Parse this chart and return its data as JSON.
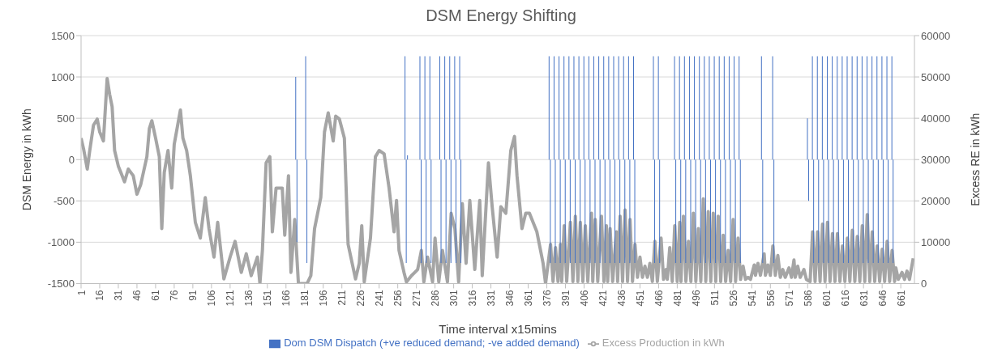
{
  "chart_data": {
    "type": "bar",
    "title": "DSM Energy Shifting",
    "xlabel": "Time interval x15mins",
    "ylabel": "DSM Energy in kWh",
    "y2label": "Excess RE in kWh",
    "xlim": [
      1,
      672
    ],
    "xticks": [
      1,
      16,
      31,
      46,
      61,
      76,
      91,
      106,
      121,
      136,
      151,
      166,
      181,
      196,
      211,
      226,
      241,
      256,
      271,
      286,
      301,
      316,
      331,
      346,
      361,
      376,
      391,
      406,
      421,
      436,
      451,
      466,
      481,
      496,
      511,
      526,
      541,
      556,
      571,
      586,
      601,
      616,
      631,
      646,
      661
    ],
    "ylim": [
      -1500,
      1500
    ],
    "yticks": [
      -1500,
      -1000,
      -500,
      0,
      500,
      1000,
      1500
    ],
    "y2lim": [
      0,
      60000
    ],
    "y2ticks": [
      0,
      10000,
      20000,
      30000,
      40000,
      50000,
      60000
    ],
    "grid": "y",
    "legend": "bottom",
    "series": [
      {
        "name": "Dom DSM Dispatch (+ve reduced demand; -ve added demand)",
        "type": "bar",
        "color": "#4472c4",
        "x": [
          174,
          175,
          182,
          183,
          262,
          263,
          264,
          274,
          275,
          278,
          279,
          282,
          283,
          290,
          291,
          294,
          295,
          298,
          299,
          302,
          303,
          306,
          307,
          378,
          379,
          382,
          383,
          386,
          387,
          390,
          391,
          394,
          395,
          398,
          399,
          402,
          403,
          406,
          407,
          410,
          411,
          414,
          415,
          418,
          419,
          422,
          423,
          426,
          427,
          430,
          431,
          434,
          435,
          438,
          439,
          442,
          443,
          446,
          447,
          462,
          463,
          466,
          467,
          479,
          480,
          483,
          484,
          487,
          488,
          491,
          492,
          495,
          496,
          499,
          500,
          503,
          504,
          507,
          508,
          511,
          512,
          515,
          516,
          519,
          520,
          523,
          524,
          527,
          528,
          531,
          532,
          549,
          550,
          558,
          559,
          586,
          587,
          590,
          591,
          594,
          595,
          598,
          599,
          602,
          603,
          606,
          607,
          610,
          611,
          614,
          615,
          618,
          619,
          622,
          623,
          626,
          627,
          630,
          631,
          634,
          635,
          638,
          639,
          642,
          643,
          646,
          647,
          650,
          651,
          654,
          655
        ],
        "values": [
          1000,
          -1000,
          1250,
          -1250,
          1250,
          -1250,
          50,
          1250,
          -1250,
          1250,
          -1250,
          1250,
          -1250,
          1250,
          -1250,
          1250,
          -1250,
          1250,
          -1250,
          1250,
          -1250,
          1250,
          -1250,
          1250,
          -1250,
          1250,
          -1250,
          1250,
          -1250,
          1250,
          -1250,
          1250,
          -1250,
          1250,
          -1250,
          1250,
          -1250,
          1250,
          -1250,
          1250,
          -1250,
          1250,
          -1250,
          1250,
          -1250,
          1250,
          -1250,
          1250,
          -1250,
          1250,
          -1250,
          1250,
          -1250,
          1250,
          -1250,
          1250,
          -1250,
          1250,
          -1250,
          1250,
          -1250,
          1250,
          -1250,
          1250,
          -1250,
          1250,
          -1250,
          1250,
          -1250,
          1250,
          -1250,
          1250,
          -1250,
          1250,
          -1250,
          1250,
          -1250,
          1250,
          -1250,
          1250,
          -1250,
          1250,
          -1250,
          1250,
          -1250,
          1250,
          -1250,
          1250,
          -1250,
          1250,
          -1250,
          1250,
          -1250,
          1250,
          -1250,
          500,
          -500,
          1250,
          -1250,
          1250,
          -1250,
          1250,
          -1250,
          1250,
          -1250,
          1250,
          -1250,
          1250,
          -1250,
          1250,
          -1250,
          1250,
          -1250,
          1250,
          -1250,
          1250,
          -1250,
          1250,
          -1250,
          1250,
          -1250,
          1250,
          -1250,
          1250,
          -1250,
          1250,
          -1250,
          1250,
          -1250,
          1250,
          -1250
        ]
      },
      {
        "name": "Excess Production in kWh",
        "type": "line",
        "axis": "y2",
        "color": "#a5a5a5",
        "x": [
          1,
          3,
          6,
          8,
          11,
          14,
          16,
          19,
          22,
          24,
          26,
          28,
          31,
          33,
          36,
          39,
          43,
          46,
          49,
          54,
          56,
          58,
          61,
          64,
          66,
          68,
          71,
          74,
          76,
          81,
          83,
          86,
          89,
          93,
          97,
          101,
          104,
          108,
          111,
          116,
          121,
          125,
          130,
          134,
          138,
          143,
          145,
          147,
          150,
          153,
          155,
          158,
          163,
          165,
          168,
          170,
          173,
          176,
          183,
          186,
          189,
          194,
          197,
          200,
          204,
          206,
          209,
          213,
          216,
          222,
          225,
          227,
          229,
          234,
          238,
          241,
          245,
          249,
          253,
          255,
          257,
          261,
          263,
          267,
          272,
          275,
          277,
          280,
          284,
          286,
          289,
          292,
          296,
          299,
          302,
          305,
          308,
          311,
          314,
          318,
          322,
          324,
          329,
          332,
          336,
          339,
          343,
          347,
          350,
          352,
          356,
          359,
          362,
          368,
          373,
          375,
          379,
          381,
          383,
          385,
          387,
          388,
          390,
          392,
          395,
          397,
          399,
          401,
          403,
          405,
          407,
          409,
          412,
          413,
          415,
          417,
          420,
          422,
          424,
          425,
          427,
          429,
          432,
          433,
          435,
          437,
          439,
          441,
          443,
          445,
          447,
          449,
          451,
          453,
          455,
          457,
          459,
          461,
          463,
          465,
          468,
          470,
          472,
          473,
          475,
          477,
          479,
          481,
          483,
          484,
          486,
          488,
          490,
          492,
          494,
          496,
          498,
          500,
          502,
          504,
          506,
          508,
          510,
          512,
          514,
          516,
          518,
          520,
          522,
          524,
          526,
          528,
          530,
          532,
          534,
          536,
          538,
          540,
          543,
          544,
          546,
          548,
          551,
          552,
          554,
          556,
          558,
          560,
          562,
          564,
          566,
          568,
          571,
          573,
          575,
          576,
          578,
          580,
          583,
          585,
          586,
          588,
          590,
          592,
          594,
          596,
          598,
          600,
          602,
          604,
          606,
          608,
          610,
          612,
          614,
          616,
          618,
          620,
          622,
          624,
          626,
          628,
          630,
          632,
          634,
          636,
          638,
          640,
          642,
          644,
          646,
          648,
          650,
          652,
          654,
          656,
          657,
          659,
          662,
          664,
          666,
          668,
          671
        ],
        "values": [
          35200,
          32600,
          27700,
          32200,
          38300,
          39800,
          36700,
          34500,
          49600,
          45800,
          42800,
          32200,
          28400,
          26900,
          24600,
          27700,
          26100,
          21600,
          23900,
          30700,
          37500,
          39400,
          35200,
          30700,
          13300,
          26900,
          32200,
          23100,
          33700,
          42000,
          35200,
          32200,
          26100,
          14800,
          11000,
          20800,
          13300,
          6400,
          14800,
          1100,
          6400,
          10200,
          2700,
          7200,
          1900,
          6400,
          0,
          8000,
          29200,
          30700,
          12500,
          23100,
          23100,
          11700,
          26100,
          2700,
          15500,
          0,
          0,
          1900,
          13300,
          20800,
          36700,
          41300,
          34500,
          40500,
          39800,
          35200,
          9500,
          1100,
          4900,
          14000,
          400,
          11000,
          30700,
          32200,
          31400,
          23100,
          12500,
          20100,
          8000,
          2700,
          400,
          1900,
          3400,
          8000,
          400,
          6400,
          400,
          11000,
          400,
          8000,
          400,
          17000,
          13300,
          400,
          19300,
          4900,
          20100,
          3400,
          20100,
          1900,
          29200,
          18600,
          6400,
          18600,
          17000,
          32200,
          35600,
          26100,
          13300,
          17000,
          17000,
          12500,
          4900,
          0,
          9500,
          500,
          8700,
          500,
          9500,
          500,
          14000,
          500,
          14800,
          500,
          16300,
          500,
          14800,
          500,
          14000,
          500,
          17000,
          500,
          15500,
          500,
          16300,
          500,
          14000,
          500,
          13300,
          500,
          12500,
          500,
          16300,
          500,
          17800,
          500,
          15500,
          500,
          9500,
          1500,
          6400,
          1500,
          4200,
          1500,
          4900,
          500,
          10200,
          500,
          11000,
          1000,
          3400,
          1000,
          8700,
          500,
          14000,
          500,
          14800,
          500,
          16300,
          500,
          10200,
          500,
          17000,
          500,
          13300,
          500,
          20500,
          500,
          17400,
          500,
          17000,
          500,
          16300,
          500,
          11700,
          500,
          8000,
          500,
          15500,
          500,
          11000,
          1000,
          4200,
          1000,
          1500,
          1000,
          4500,
          2000,
          4900,
          2000,
          7200,
          2000,
          4500,
          2000,
          9100,
          2000,
          6800,
          1500,
          3400,
          1500,
          3800,
          1500,
          5700,
          1500,
          4200,
          1500,
          3400,
          1000,
          800,
          500,
          12500,
          500,
          12500,
          500,
          14400,
          500,
          14800,
          500,
          12100,
          500,
          12100,
          500,
          9100,
          500,
          11000,
          500,
          12900,
          500,
          11400,
          500,
          14000,
          500,
          16700,
          500,
          12500,
          500,
          9100,
          500,
          8300,
          500,
          10200,
          500,
          8000,
          500,
          3800,
          1000,
          2700,
          1000,
          3000,
          1000,
          6100
        ]
      }
    ]
  }
}
